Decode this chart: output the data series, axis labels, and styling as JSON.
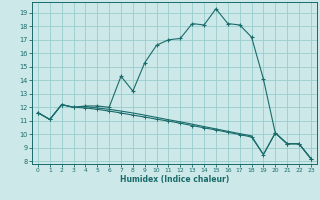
{
  "xlabel": "Humidex (Indice chaleur)",
  "bg_color": "#cce8e8",
  "grid_color": "#99cccc",
  "line_color": "#1a6b6b",
  "xlim": [
    -0.5,
    23.5
  ],
  "ylim": [
    7.8,
    19.8
  ],
  "yticks": [
    8,
    9,
    10,
    11,
    12,
    13,
    14,
    15,
    16,
    17,
    18,
    19
  ],
  "xticks": [
    0,
    1,
    2,
    3,
    4,
    5,
    6,
    7,
    8,
    9,
    10,
    11,
    12,
    13,
    14,
    15,
    16,
    17,
    18,
    19,
    20,
    21,
    22,
    23
  ],
  "curve1_x": [
    0,
    1,
    2,
    3,
    4,
    5,
    6,
    7,
    8,
    9,
    10,
    11,
    12,
    13,
    14,
    15,
    16,
    17,
    18,
    19,
    20,
    21,
    22,
    23
  ],
  "curve1_y": [
    11.6,
    11.1,
    12.2,
    12.0,
    12.1,
    12.1,
    12.0,
    14.3,
    13.2,
    15.3,
    16.6,
    17.0,
    17.1,
    18.2,
    18.1,
    19.3,
    18.2,
    18.1,
    17.2,
    14.1,
    10.1,
    9.3,
    9.3,
    8.2
  ],
  "curve2_x": [
    0,
    1,
    2,
    3,
    4,
    5,
    6,
    7,
    8,
    9,
    10,
    11,
    12,
    13,
    14,
    15,
    16,
    17,
    18,
    19,
    20,
    21,
    22,
    23
  ],
  "curve2_y": [
    11.6,
    11.1,
    12.2,
    12.0,
    11.95,
    11.85,
    11.72,
    11.58,
    11.42,
    11.28,
    11.12,
    10.98,
    10.82,
    10.65,
    10.48,
    10.32,
    10.15,
    9.98,
    9.8,
    8.5,
    10.1,
    9.3,
    9.3,
    8.2
  ],
  "curve3_x": [
    0,
    1,
    2,
    3,
    4,
    5,
    6,
    7,
    8,
    9,
    10,
    11,
    12,
    13,
    14,
    15,
    16,
    17,
    18,
    19,
    20,
    21,
    22,
    23
  ],
  "curve3_y": [
    11.6,
    11.1,
    12.2,
    12.0,
    12.05,
    11.95,
    11.85,
    11.72,
    11.58,
    11.42,
    11.25,
    11.08,
    10.92,
    10.75,
    10.57,
    10.4,
    10.22,
    10.05,
    9.88,
    8.5,
    10.1,
    9.3,
    9.3,
    8.2
  ]
}
